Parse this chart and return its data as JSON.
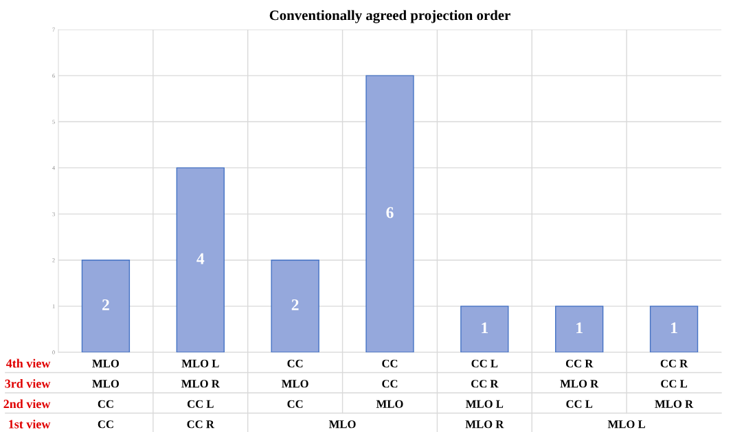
{
  "chart_data": {
    "type": "bar",
    "title": "Conventionally agreed projection order",
    "categories": [
      "MLO\nMLO\nCC",
      "MLO L\nMLO R\nCC L",
      "CC\nMLO\nCC",
      "CC\nCC\nMLO",
      "CC L\nCC R\nMLO L",
      "CC R\nMLO R\nCC L",
      "CC R\nCC L\nMLO R"
    ],
    "values": [
      2,
      4,
      2,
      6,
      1,
      1,
      1
    ],
    "color": "#95a8dc",
    "ylim": [
      0,
      7
    ],
    "yticks": [
      0,
      1,
      2,
      3,
      4,
      5,
      6,
      7
    ],
    "grid": true,
    "data_labels": true,
    "annotations": [
      "4th view",
      "3rd view",
      "2nd view",
      "1st view",
      "CC",
      "CC R",
      "MLO",
      "MLO R",
      "MLO L"
    ]
  }
}
